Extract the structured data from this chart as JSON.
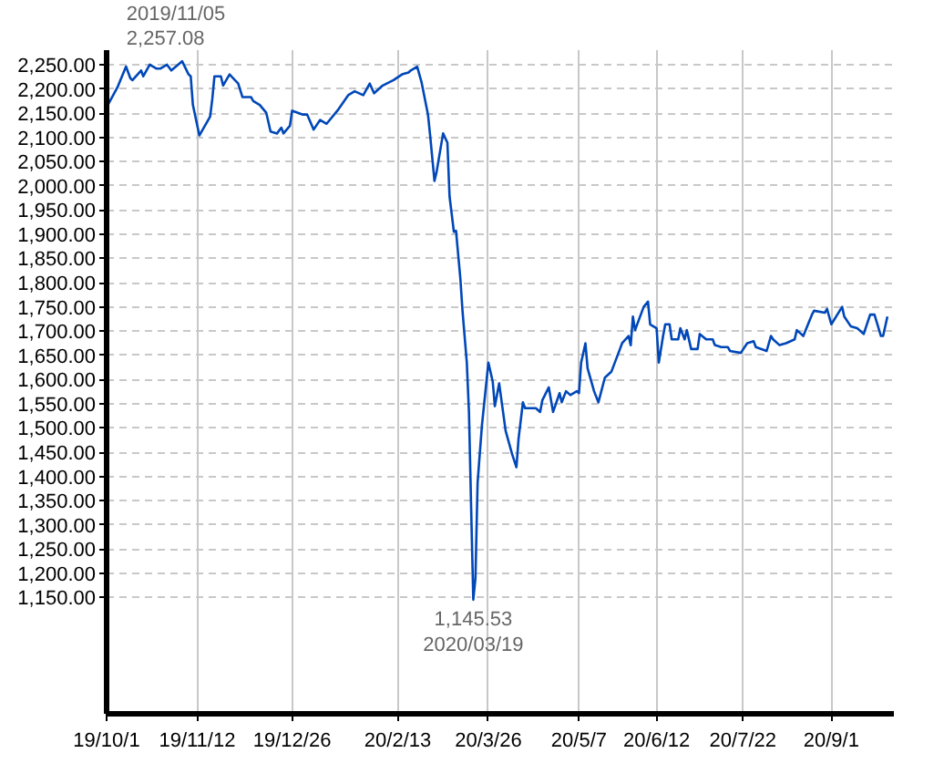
{
  "chart_data": {
    "type": "line",
    "grid": true,
    "marker": "none",
    "line_style": "solid",
    "xlim": [
      "2019-10-01",
      "2020-09-30"
    ],
    "ylim": [
      910,
      2280
    ],
    "xticks": [
      {
        "value": "2019-10-01",
        "label": "19/10/1"
      },
      {
        "value": "2019-11-12",
        "label": "19/11/12"
      },
      {
        "value": "2019-12-26",
        "label": "19/12/26"
      },
      {
        "value": "2020-02-13",
        "label": "20/2/13"
      },
      {
        "value": "2020-03-26",
        "label": "20/3/26"
      },
      {
        "value": "2020-05-07",
        "label": "20/5/7"
      },
      {
        "value": "2020-06-12",
        "label": "20/6/12"
      },
      {
        "value": "2020-07-22",
        "label": "20/7/22"
      },
      {
        "value": "2020-09-01",
        "label": "20/9/1"
      }
    ],
    "yticks": [
      {
        "value": 1150,
        "label": "1,150.00"
      },
      {
        "value": 1200,
        "label": "1,200.00"
      },
      {
        "value": 1250,
        "label": "1,250.00"
      },
      {
        "value": 1300,
        "label": "1,300.00"
      },
      {
        "value": 1350,
        "label": "1,350.00"
      },
      {
        "value": 1400,
        "label": "1,400.00"
      },
      {
        "value": 1450,
        "label": "1,450.00"
      },
      {
        "value": 1500,
        "label": "1,500.00"
      },
      {
        "value": 1550,
        "label": "1,550.00"
      },
      {
        "value": 1600,
        "label": "1,600.00"
      },
      {
        "value": 1650,
        "label": "1,650.00"
      },
      {
        "value": 1700,
        "label": "1,700.00"
      },
      {
        "value": 1750,
        "label": "1,750.00"
      },
      {
        "value": 1800,
        "label": "1,800.00"
      },
      {
        "value": 1850,
        "label": "1,850.00"
      },
      {
        "value": 1900,
        "label": "1,900.00"
      },
      {
        "value": 1950,
        "label": "1,950.00"
      },
      {
        "value": 2000,
        "label": "2,000.00"
      },
      {
        "value": 2050,
        "label": "2,050.00"
      },
      {
        "value": 2100,
        "label": "2,100.00"
      },
      {
        "value": 2150,
        "label": "2,150.00"
      },
      {
        "value": 2200,
        "label": "2,200.00"
      },
      {
        "value": 2250,
        "label": "2,250.00"
      }
    ],
    "annotations": [
      {
        "text": "2019/11/05\n2,257.08",
        "x": "2019-11-05",
        "y": 2257.08
      },
      {
        "text": "1,145.53\n2020/03/19",
        "x": "2020-03-19",
        "y": 1145.53
      }
    ],
    "series": [
      {
        "color": "#0047b8",
        "x": [
          "2019-10-01",
          "2019-10-06",
          "2019-10-10",
          "2019-10-12",
          "2019-10-13",
          "2019-10-17",
          "2019-10-18",
          "2019-10-21",
          "2019-10-24",
          "2019-10-26",
          "2019-10-29",
          "2019-10-31",
          "2019-11-05",
          "2019-11-08",
          "2019-11-09",
          "2019-11-10",
          "2019-11-13",
          "2019-11-18",
          "2019-11-19",
          "2019-11-20",
          "2019-11-23",
          "2019-11-24",
          "2019-11-27",
          "2019-12-01",
          "2019-12-03",
          "2019-12-07",
          "2019-12-08",
          "2019-12-11",
          "2019-12-14",
          "2019-12-16",
          "2019-12-19",
          "2019-12-21",
          "2019-12-22",
          "2019-12-25",
          "2019-12-26",
          "2019-12-31",
          "2020-01-02",
          "2020-01-05",
          "2020-01-08",
          "2020-01-11",
          "2020-01-16",
          "2020-01-21",
          "2020-01-24",
          "2020-01-28",
          "2020-01-31",
          "2020-02-02",
          "2020-02-06",
          "2020-02-11",
          "2020-02-15",
          "2020-02-18",
          "2020-02-19",
          "2020-02-22",
          "2020-02-24",
          "2020-02-27",
          "2020-02-28",
          "2020-03-01",
          "2020-03-02",
          "2020-03-05",
          "2020-03-07",
          "2020-03-08",
          "2020-03-10",
          "2020-03-11",
          "2020-03-13",
          "2020-03-14",
          "2020-03-16",
          "2020-03-17",
          "2020-03-18",
          "2020-03-19",
          "2020-03-20",
          "2020-03-21",
          "2020-03-23",
          "2020-03-26",
          "2020-03-28",
          "2020-03-29",
          "2020-03-31",
          "2020-04-03",
          "2020-04-06",
          "2020-04-08",
          "2020-04-09",
          "2020-04-11",
          "2020-04-12",
          "2020-04-17",
          "2020-04-19",
          "2020-04-20",
          "2020-04-23",
          "2020-04-25",
          "2020-04-28",
          "2020-04-29",
          "2020-05-01",
          "2020-05-03",
          "2020-05-06",
          "2020-05-07",
          "2020-05-08",
          "2020-05-10",
          "2020-05-11",
          "2020-05-14",
          "2020-05-16",
          "2020-05-19",
          "2020-05-22",
          "2020-05-26",
          "2020-05-27",
          "2020-05-30",
          "2020-05-31",
          "2020-06-01",
          "2020-06-02",
          "2020-06-06",
          "2020-06-08",
          "2020-06-09",
          "2020-06-12",
          "2020-06-13",
          "2020-06-15",
          "2020-06-16",
          "2020-06-18",
          "2020-06-19",
          "2020-06-22",
          "2020-06-23",
          "2020-06-25",
          "2020-06-26",
          "2020-06-28",
          "2020-07-01",
          "2020-07-02",
          "2020-07-05",
          "2020-07-08",
          "2020-07-09",
          "2020-07-12",
          "2020-07-15",
          "2020-07-16",
          "2020-07-21",
          "2020-07-24",
          "2020-07-27",
          "2020-07-28",
          "2020-08-02",
          "2020-08-04",
          "2020-08-05",
          "2020-08-08",
          "2020-08-11",
          "2020-08-15",
          "2020-08-16",
          "2020-08-19",
          "2020-08-23",
          "2020-08-24",
          "2020-08-29",
          "2020-08-30",
          "2020-09-01",
          "2020-09-06",
          "2020-09-07",
          "2020-09-10",
          "2020-09-13",
          "2020-09-16",
          "2020-09-19",
          "2020-09-21",
          "2020-09-24",
          "2020-09-25",
          "2020-09-27"
        ],
        "values": [
          2162,
          2203,
          2246,
          2222,
          2218,
          2238,
          2226,
          2250,
          2242,
          2242,
          2250,
          2238,
          2257.08,
          2230,
          2226,
          2167,
          2104,
          2143,
          2179,
          2226,
          2226,
          2207,
          2230,
          2211,
          2183,
          2183,
          2175,
          2167,
          2151,
          2112,
          2108,
          2120,
          2108,
          2124,
          2155,
          2147,
          2147,
          2116,
          2136,
          2128,
          2155,
          2187,
          2195,
          2187,
          2211,
          2191,
          2207,
          2218,
          2230,
          2234,
          2238,
          2246,
          2214,
          2147,
          2104,
          2010,
          2029,
          2108,
          2089,
          1978,
          1905,
          1907,
          1809,
          1742,
          1635,
          1533,
          1336,
          1145.53,
          1190,
          1387,
          1505,
          1635,
          1596,
          1545,
          1592,
          1494,
          1446,
          1419,
          1478,
          1553,
          1541,
          1541,
          1533,
          1557,
          1584,
          1533,
          1572,
          1553,
          1576,
          1568,
          1576,
          1572,
          1635,
          1675,
          1623,
          1576,
          1553,
          1604,
          1616,
          1663,
          1675,
          1690,
          1671,
          1730,
          1702,
          1750,
          1761,
          1714,
          1706,
          1635,
          1690,
          1714,
          1714,
          1683,
          1683,
          1706,
          1683,
          1702,
          1663,
          1663,
          1694,
          1683,
          1683,
          1671,
          1667,
          1667,
          1659,
          1655,
          1675,
          1679,
          1667,
          1659,
          1690,
          1683,
          1671,
          1675,
          1683,
          1702,
          1690,
          1734,
          1742,
          1738,
          1746,
          1714,
          1750,
          1730,
          1710,
          1706,
          1694,
          1734,
          1734,
          1690,
          1690,
          1730
        ]
      }
    ]
  }
}
